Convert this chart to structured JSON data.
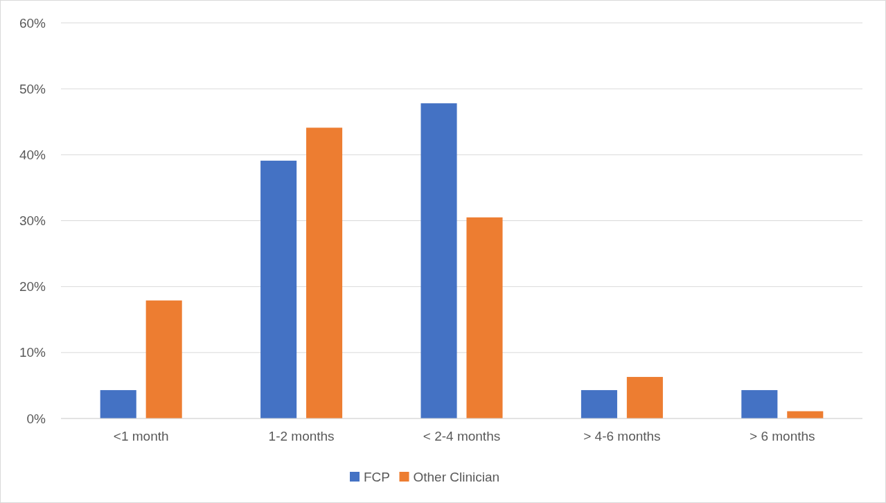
{
  "chart_data": {
    "type": "bar",
    "categories": [
      "<1 month",
      "1-2 months",
      "< 2-4 months",
      "> 4-6 months",
      "> 6 months"
    ],
    "series": [
      {
        "name": "FCP",
        "color": "#4472c4",
        "values": [
          4.3,
          39.1,
          47.8,
          4.3,
          4.3
        ]
      },
      {
        "name": "Other Clinician",
        "color": "#ed7d31",
        "values": [
          17.9,
          44.1,
          30.5,
          6.3,
          1.1
        ]
      }
    ],
    "ylim": [
      0,
      60
    ],
    "yticks": [
      {
        "value": 0,
        "label": "0%"
      },
      {
        "value": 10,
        "label": "10%"
      },
      {
        "value": 20,
        "label": "20%"
      },
      {
        "value": 30,
        "label": "30%"
      },
      {
        "value": 40,
        "label": "40%"
      },
      {
        "value": 50,
        "label": "50%"
      },
      {
        "value": 60,
        "label": "60%"
      }
    ],
    "grid": "y",
    "legend": "bottom"
  }
}
